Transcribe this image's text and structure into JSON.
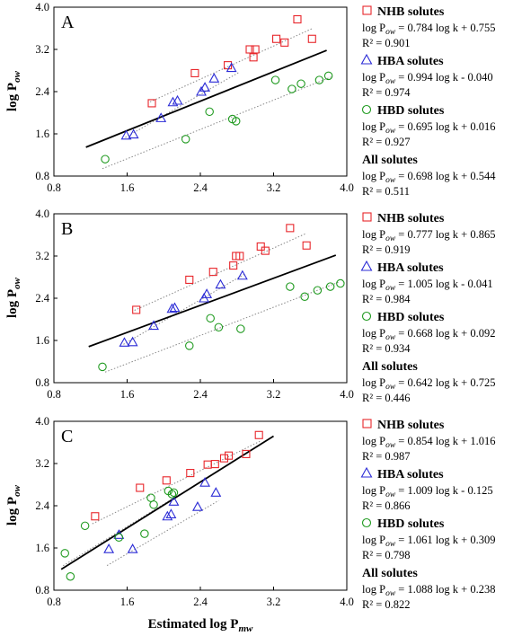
{
  "xlabel": "Estimated log P",
  "xlabel_sub": "mw",
  "ylabel": "log P",
  "ylabel_sub": "ow",
  "colors": {
    "NHB": "#e8262b",
    "HBA": "#2b2bd6",
    "HBD": "#1f9a1f",
    "all": "#000000"
  },
  "chart_data": [
    {
      "type": "scatter",
      "panel": "A",
      "xlim": [
        0.8,
        4.0
      ],
      "ylim": [
        0.8,
        4.0
      ],
      "xticks": [
        "0.8",
        "1.6",
        "2.4",
        "3.2",
        "4.0"
      ],
      "yticks": [
        "0.8",
        "1.6",
        "2.4",
        "3.2",
        "4.0"
      ],
      "grid": false,
      "series": [
        {
          "name": "NHB solutes",
          "marker": "square",
          "color": "#e8262b",
          "points": [
            [
              1.87,
              2.18
            ],
            [
              2.34,
              2.75
            ],
            [
              2.7,
              2.9
            ],
            [
              2.94,
              3.2
            ],
            [
              3.0,
              3.2
            ],
            [
              2.98,
              3.05
            ],
            [
              3.23,
              3.4
            ],
            [
              3.32,
              3.33
            ],
            [
              3.46,
              3.77
            ],
            [
              3.62,
              3.4
            ]
          ],
          "fit": {
            "slope": 0.784,
            "intercept": 0.755,
            "r2": "0.901",
            "x_range": [
              1.85,
              3.62
            ]
          },
          "eq_lines": [
            "log P",
            "ow",
            " = 0.784 log k + 0.755"
          ],
          "r2_text": "R² = 0.901"
        },
        {
          "name": "HBA solutes",
          "marker": "triangle",
          "color": "#2b2bd6",
          "points": [
            [
              1.59,
              1.57
            ],
            [
              1.67,
              1.59
            ],
            [
              1.97,
              1.9
            ],
            [
              2.1,
              2.2
            ],
            [
              2.15,
              2.23
            ],
            [
              2.41,
              2.4
            ],
            [
              2.45,
              2.48
            ],
            [
              2.55,
              2.65
            ],
            [
              2.74,
              2.85
            ]
          ],
          "fit": {
            "slope": 0.994,
            "intercept": -0.04,
            "r2": "0.974",
            "x_range": [
              1.58,
              2.82
            ]
          },
          "eq_lines": [
            "log P",
            "ow",
            " = 0.994 log k - 0.040"
          ],
          "r2_text": "R² = 0.974"
        },
        {
          "name": "HBD solutes",
          "marker": "circle",
          "color": "#1f9a1f",
          "points": [
            [
              1.36,
              1.12
            ],
            [
              2.24,
              1.5
            ],
            [
              2.5,
              2.02
            ],
            [
              2.75,
              1.88
            ],
            [
              2.79,
              1.84
            ],
            [
              3.22,
              2.62
            ],
            [
              3.4,
              2.45
            ],
            [
              3.5,
              2.55
            ],
            [
              3.7,
              2.62
            ],
            [
              3.8,
              2.7
            ]
          ],
          "fit": {
            "slope": 0.695,
            "intercept": 0.016,
            "r2": "0.927",
            "x_range": [
              1.33,
              3.83
            ]
          },
          "eq_lines": [
            "log P",
            "ow",
            " = 0.695 log k + 0.016"
          ],
          "r2_text": "R² = 0.927"
        },
        {
          "name": "All solutes",
          "marker": "none",
          "color": "#000000",
          "fit": {
            "slope": 0.698,
            "intercept": 0.544,
            "r2": "0.511",
            "x_range": [
              1.15,
              3.78
            ]
          },
          "eq_lines": [
            "log P",
            "ow",
            " = 0.698 log k + 0.544"
          ],
          "r2_text": "R² = 0.511"
        }
      ]
    },
    {
      "type": "scatter",
      "panel": "B",
      "xlim": [
        0.8,
        4.0
      ],
      "ylim": [
        0.8,
        4.0
      ],
      "xticks": [
        "0.8",
        "1.6",
        "2.4",
        "3.2",
        "4.0"
      ],
      "yticks": [
        "0.8",
        "1.6",
        "2.4",
        "3.2",
        "4.0"
      ],
      "grid": false,
      "series": [
        {
          "name": "NHB solutes",
          "marker": "square",
          "color": "#e8262b",
          "points": [
            [
              1.7,
              2.18
            ],
            [
              2.28,
              2.75
            ],
            [
              2.54,
              2.9
            ],
            [
              2.76,
              3.02
            ],
            [
              2.79,
              3.2
            ],
            [
              2.83,
              3.2
            ],
            [
              3.06,
              3.38
            ],
            [
              3.11,
              3.3
            ],
            [
              3.38,
              3.73
            ],
            [
              3.56,
              3.4
            ]
          ],
          "fit": {
            "slope": 0.777,
            "intercept": 0.865,
            "r2": "0.919",
            "x_range": [
              1.68,
              3.56
            ]
          },
          "eq_lines": [
            "log P",
            "ow",
            " = 0.777 log k + 0.865"
          ],
          "r2_text": "R² = 0.919"
        },
        {
          "name": "HBA solutes",
          "marker": "triangle",
          "color": "#2b2bd6",
          "points": [
            [
              1.57,
              1.56
            ],
            [
              1.66,
              1.57
            ],
            [
              1.89,
              1.88
            ],
            [
              2.09,
              2.2
            ],
            [
              2.12,
              2.22
            ],
            [
              2.44,
              2.4
            ],
            [
              2.47,
              2.48
            ],
            [
              2.62,
              2.66
            ],
            [
              2.86,
              2.83
            ]
          ],
          "fit": {
            "slope": 1.005,
            "intercept": -0.041,
            "r2": "0.984",
            "x_range": [
              1.56,
              2.88
            ]
          },
          "eq_lines": [
            "log P",
            "ow",
            " = 1.005 log k - 0.041"
          ],
          "r2_text": "R² = 0.984"
        },
        {
          "name": "HBD solutes",
          "marker": "circle",
          "color": "#1f9a1f",
          "points": [
            [
              1.33,
              1.1
            ],
            [
              2.28,
              1.5
            ],
            [
              2.51,
              2.02
            ],
            [
              2.6,
              1.85
            ],
            [
              2.84,
              1.82
            ],
            [
              3.38,
              2.62
            ],
            [
              3.54,
              2.43
            ],
            [
              3.68,
              2.55
            ],
            [
              3.82,
              2.62
            ],
            [
              3.93,
              2.68
            ]
          ],
          "fit": {
            "slope": 0.668,
            "intercept": 0.092,
            "r2": "0.934",
            "x_range": [
              1.36,
              3.92
            ]
          },
          "eq_lines": [
            "log P",
            "ow",
            " = 0.668 log k + 0.092"
          ],
          "r2_text": "R² = 0.934"
        },
        {
          "name": "All solutes",
          "marker": "none",
          "color": "#000000",
          "fit": {
            "slope": 0.642,
            "intercept": 0.725,
            "r2": "0.446",
            "x_range": [
              1.18,
              3.88
            ]
          },
          "eq_lines": [
            "log P",
            "ow",
            " = 0.642 log k + 0.725"
          ],
          "r2_text": "R² = 0.446"
        }
      ]
    },
    {
      "type": "scatter",
      "panel": "C",
      "xlim": [
        0.8,
        4.0
      ],
      "ylim": [
        0.8,
        4.0
      ],
      "xticks": [
        "0.8",
        "1.6",
        "2.4",
        "3.2",
        "4.0"
      ],
      "yticks": [
        "0.8",
        "1.6",
        "2.4",
        "3.2",
        "4.0"
      ],
      "grid": false,
      "series": [
        {
          "name": "NHB solutes",
          "marker": "square",
          "color": "#e8262b",
          "points": [
            [
              1.25,
              2.2
            ],
            [
              1.74,
              2.74
            ],
            [
              2.03,
              2.88
            ],
            [
              2.29,
              3.02
            ],
            [
              2.48,
              3.18
            ],
            [
              2.56,
              3.19
            ],
            [
              2.66,
              3.3
            ],
            [
              2.71,
              3.35
            ],
            [
              2.9,
              3.38
            ],
            [
              3.04,
              3.74
            ]
          ],
          "fit": {
            "slope": 0.854,
            "intercept": 1.016,
            "r2": "0.987",
            "x_range": [
              1.22,
              3.05
            ]
          },
          "eq_lines": [
            "log P",
            "ow",
            " = 0.854 log k + 1.016"
          ],
          "r2_text": "R² = 0.987"
        },
        {
          "name": "HBA solutes",
          "marker": "triangle",
          "color": "#2b2bd6",
          "points": [
            [
              1.4,
              1.58
            ],
            [
              1.51,
              1.85
            ],
            [
              1.66,
              1.58
            ],
            [
              2.04,
              2.2
            ],
            [
              2.08,
              2.24
            ],
            [
              2.11,
              2.48
            ],
            [
              2.37,
              2.38
            ],
            [
              2.45,
              2.84
            ],
            [
              2.57,
              2.65
            ]
          ],
          "fit": {
            "slope": 1.009,
            "intercept": -0.125,
            "r2": "0.866",
            "x_range": [
              1.38,
              2.6
            ]
          },
          "eq_lines": [
            "log P",
            "ow",
            " = 1.009 log k - 0.125"
          ],
          "r2_text": "R² = 0.866"
        },
        {
          "name": "HBD solutes",
          "marker": "circle",
          "color": "#1f9a1f",
          "points": [
            [
              0.92,
              1.5
            ],
            [
              0.98,
              1.06
            ],
            [
              1.14,
              2.02
            ],
            [
              1.51,
              1.8
            ],
            [
              1.79,
              1.87
            ],
            [
              1.86,
              2.55
            ],
            [
              1.89,
              2.42
            ],
            [
              2.05,
              2.68
            ],
            [
              2.09,
              2.62
            ],
            [
              2.11,
              2.65
            ]
          ],
          "fit": {
            "slope": 1.061,
            "intercept": 0.309,
            "r2": "0.798",
            "x_range": [
              0.9,
              2.18
            ]
          },
          "eq_lines": [
            "log P",
            "ow",
            " = 1.061 log k + 0.309"
          ],
          "r2_text": "R² = 0.798"
        },
        {
          "name": "All solutes",
          "marker": "none",
          "color": "#000000",
          "fit": {
            "slope": 1.088,
            "intercept": 0.238,
            "r2": "0.822",
            "x_range": [
              0.88,
              3.2
            ]
          },
          "eq_lines": [
            "log P",
            "ow",
            " = 1.088 log k + 0.238"
          ],
          "r2_text": "R² = 0.822"
        }
      ]
    }
  ]
}
